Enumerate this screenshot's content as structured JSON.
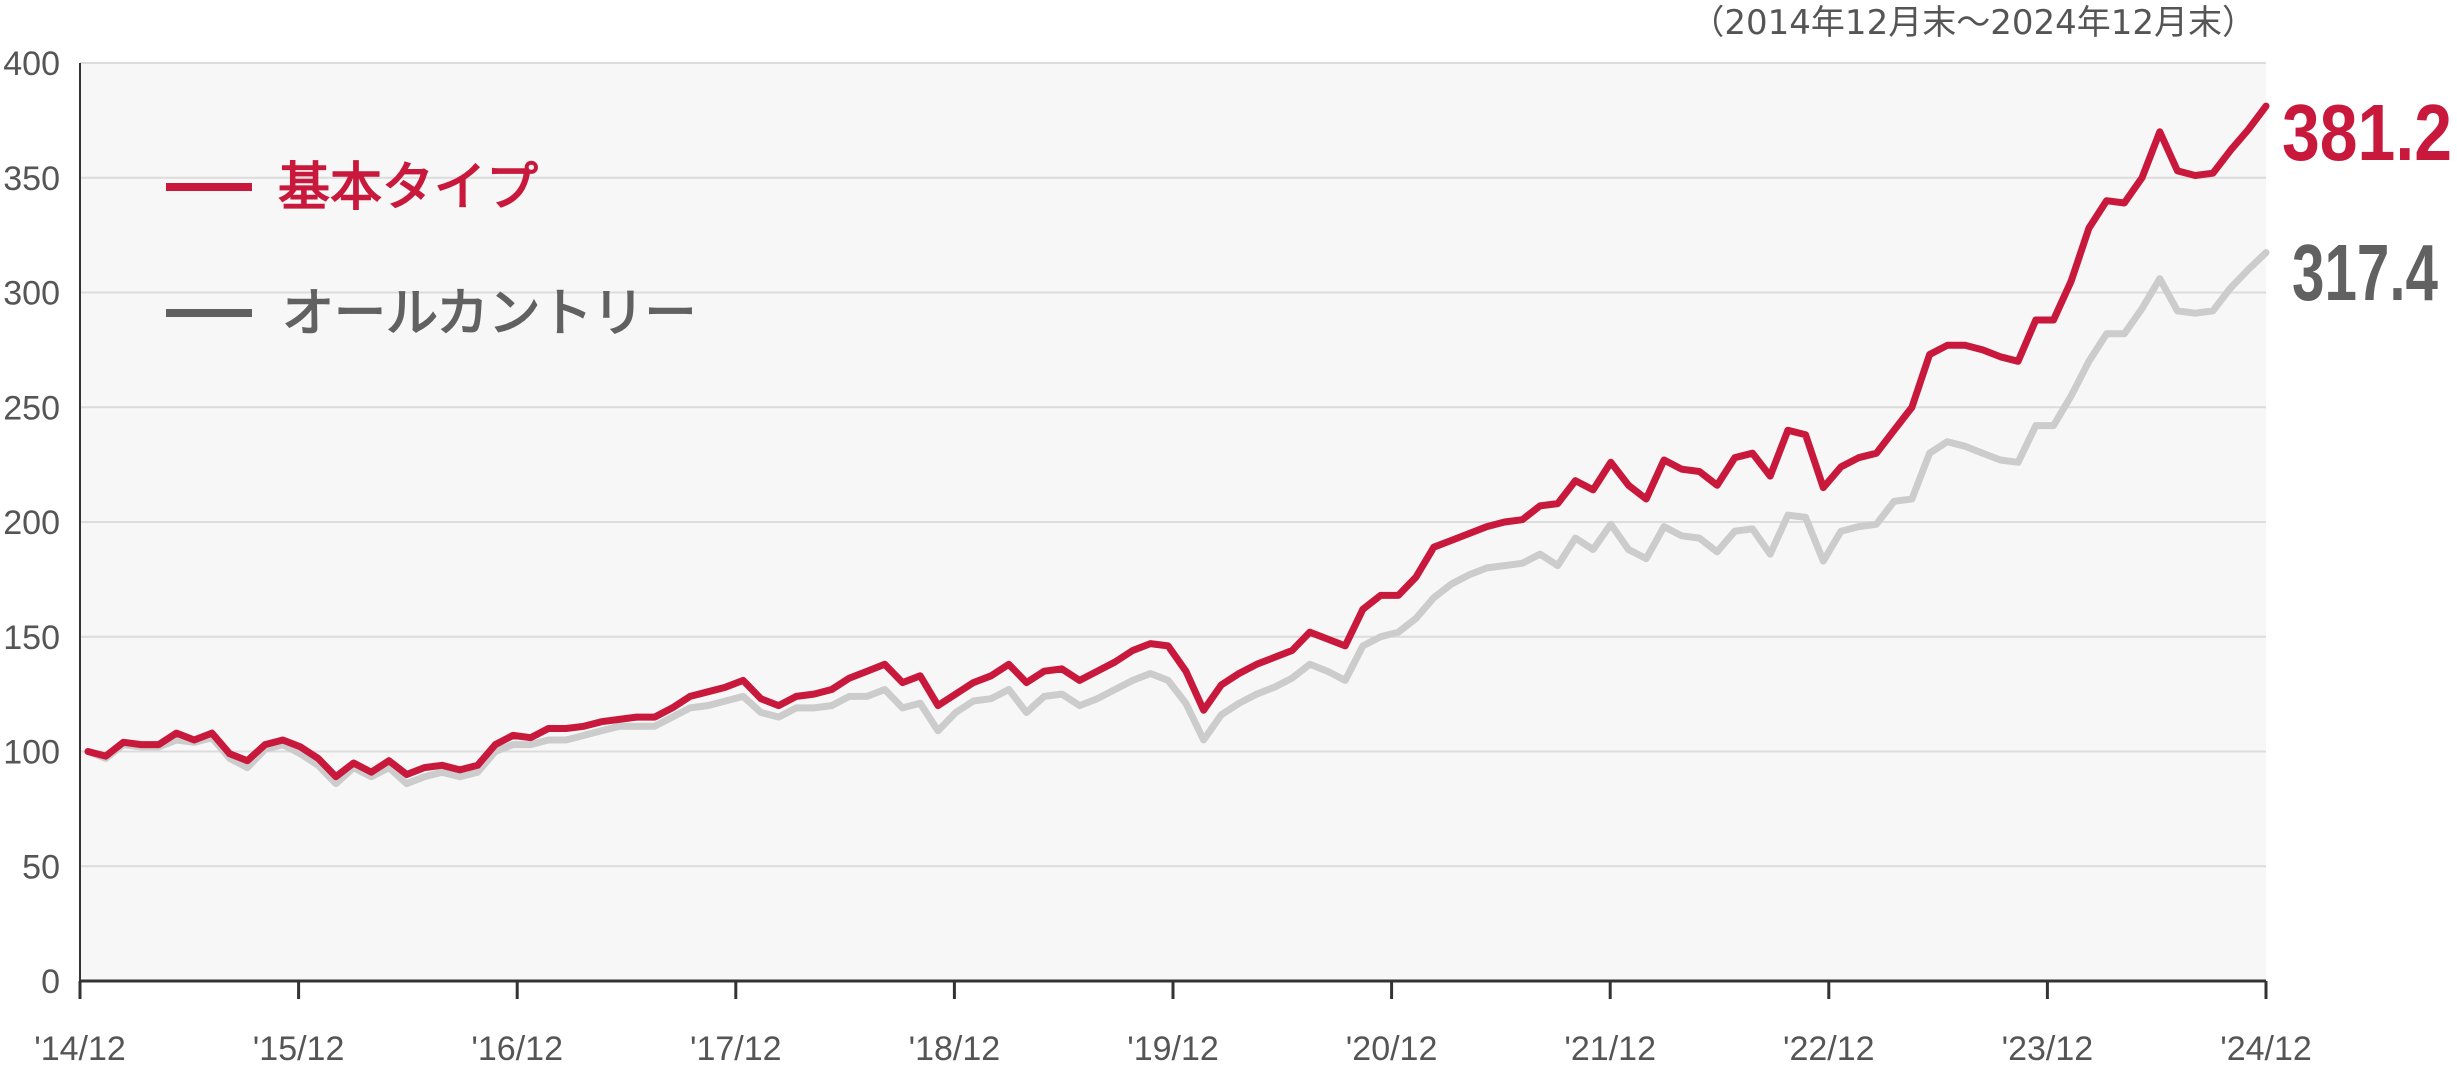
{
  "period_note": "（2014年12月末〜2024年12月末）",
  "chart_data": {
    "type": "line",
    "ylim": [
      0,
      400
    ],
    "y_ticks": [
      0,
      50,
      100,
      150,
      200,
      250,
      300,
      350,
      400
    ],
    "x_tick_labels": [
      "'14/12",
      "'15/12",
      "'16/12",
      "'17/12",
      "'18/12",
      "'19/12",
      "'20/12",
      "'21/12",
      "'22/12",
      "'23/12",
      "'24/12"
    ],
    "grid": true,
    "legend_position": "top-left",
    "series": [
      {
        "name": "基本タイプ",
        "color": "#c8193c",
        "end_label": "381.2",
        "values": [
          100,
          98,
          104,
          103,
          103,
          108,
          105,
          108,
          99,
          96,
          103,
          105,
          102,
          97,
          89,
          95,
          91,
          96,
          90,
          93,
          94,
          92,
          94,
          103,
          107,
          106,
          110,
          110,
          111,
          113,
          114,
          115,
          115,
          119,
          124,
          126,
          128,
          131,
          123,
          120,
          124,
          125,
          127,
          132,
          135,
          138,
          130,
          133,
          120,
          125,
          130,
          133,
          138,
          130,
          135,
          136,
          131,
          135,
          139,
          144,
          147,
          146,
          135,
          118,
          129,
          134,
          138,
          141,
          144,
          152,
          149,
          146,
          162,
          168,
          168,
          176,
          189,
          192,
          195,
          198,
          200,
          201,
          207,
          208,
          218,
          214,
          226,
          216,
          210,
          227,
          223,
          222,
          216,
          228,
          230,
          220,
          240,
          238,
          215,
          224,
          228,
          230,
          240,
          250,
          273,
          277,
          277,
          275,
          272,
          270,
          288,
          288,
          305,
          328,
          340,
          339,
          350,
          370,
          353,
          351,
          352,
          362,
          371,
          381.2
        ]
      },
      {
        "name": "オールカントリー",
        "color": "#cccccc",
        "legend_color": "#616161",
        "end_label": "317.4",
        "values": [
          100,
          97,
          103,
          102,
          102,
          105,
          104,
          106,
          97,
          93,
          101,
          103,
          99,
          94,
          86,
          93,
          89,
          93,
          86,
          89,
          91,
          89,
          91,
          100,
          103,
          103,
          105,
          105,
          107,
          109,
          111,
          111,
          111,
          115,
          119,
          120,
          122,
          124,
          117,
          115,
          119,
          119,
          120,
          124,
          124,
          127,
          119,
          121,
          109,
          117,
          122,
          123,
          127,
          117,
          124,
          125,
          120,
          123,
          127,
          131,
          134,
          131,
          121,
          105,
          116,
          121,
          125,
          128,
          132,
          138,
          135,
          131,
          146,
          150,
          152,
          158,
          167,
          173,
          177,
          180,
          181,
          182,
          186,
          181,
          193,
          188,
          199,
          188,
          184,
          198,
          194,
          193,
          187,
          196,
          197,
          186,
          203,
          202,
          183,
          196,
          198,
          199,
          209,
          210,
          230,
          235,
          233,
          230,
          227,
          226,
          242,
          242,
          255,
          270,
          282,
          282,
          293,
          306,
          292,
          291,
          292,
          302,
          310,
          317.4
        ]
      }
    ]
  }
}
